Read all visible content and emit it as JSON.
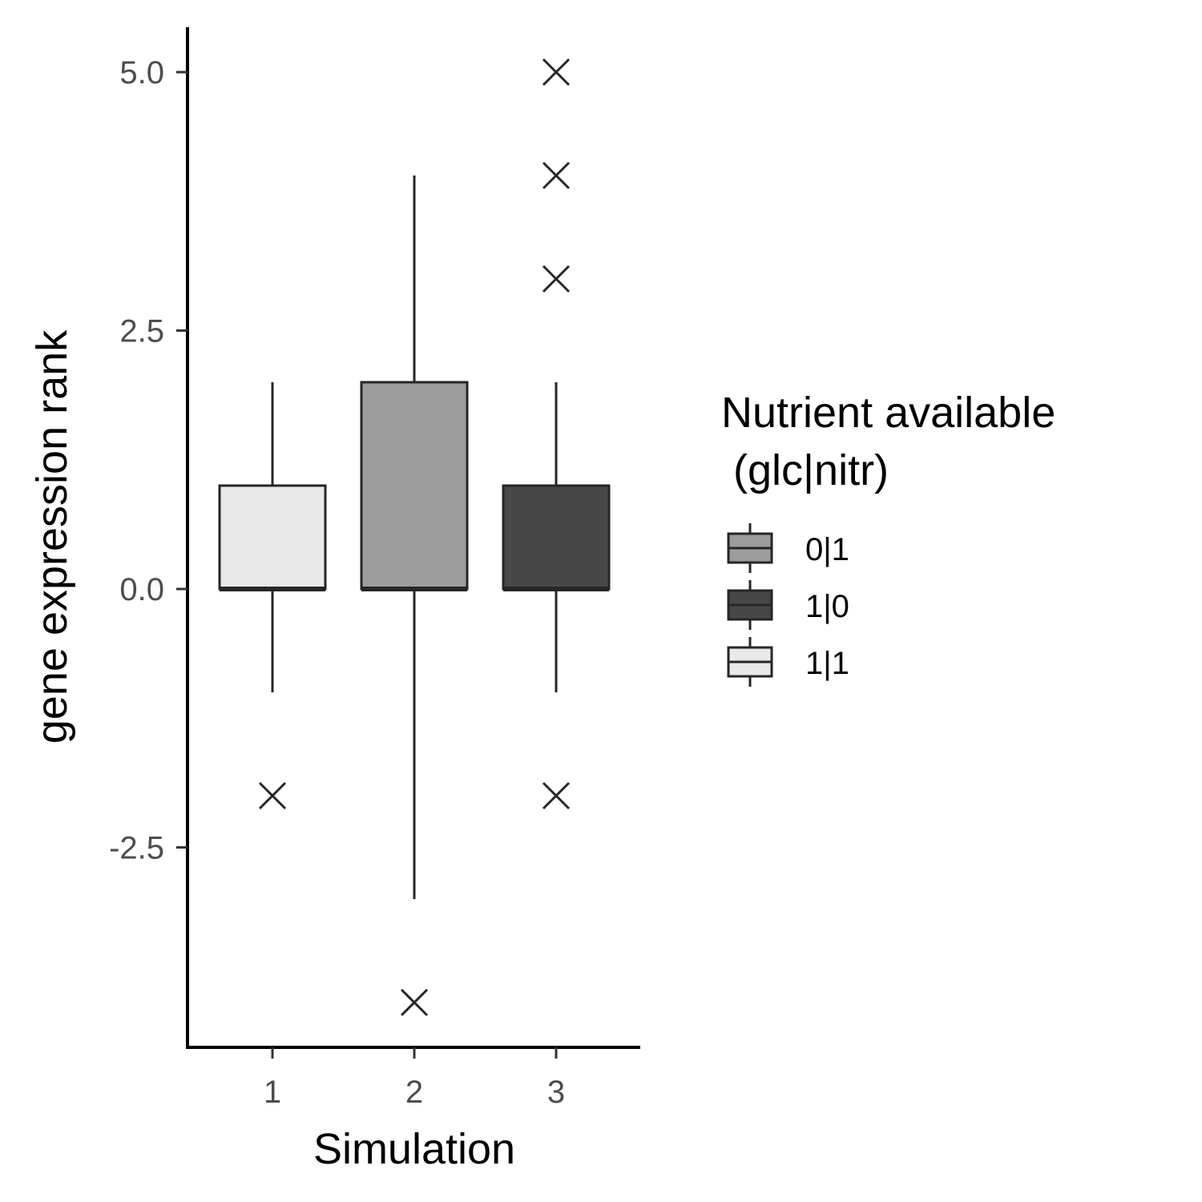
{
  "chart_data": {
    "type": "box",
    "xlabel": "Simulation",
    "ylabel": "gene expression rank",
    "categories": [
      "1",
      "2",
      "3"
    ],
    "y_ticks": [
      "-2.5",
      "0.0",
      "2.5",
      "5.0"
    ],
    "ylim": [
      -4.4,
      5.4
    ],
    "grid": false,
    "legend": {
      "title_line1": "Nutrient available",
      "title_line2": " (glc|nitr)",
      "placement": "right",
      "entries": [
        {
          "label": "0|1",
          "color": "#9c9c9c"
        },
        {
          "label": "1|0",
          "color": "#474747"
        },
        {
          "label": "1|1",
          "color": "#e9e9e9"
        }
      ]
    },
    "boxes": [
      {
        "x": "1",
        "group": "1|1",
        "color": "#e9e9e9",
        "whisker_low": -1,
        "q1": 0,
        "median": 0,
        "q3": 1,
        "whisker_high": 2,
        "outliers": [
          -2
        ]
      },
      {
        "x": "2",
        "group": "0|1",
        "color": "#9c9c9c",
        "whisker_low": -3,
        "q1": 0,
        "median": 0,
        "q3": 2,
        "whisker_high": 4,
        "outliers": [
          -4
        ]
      },
      {
        "x": "3",
        "group": "1|0",
        "color": "#474747",
        "whisker_low": -1,
        "q1": 0,
        "median": 0,
        "q3": 1,
        "whisker_high": 2,
        "outliers": [
          -2,
          3,
          4,
          5
        ]
      }
    ]
  }
}
